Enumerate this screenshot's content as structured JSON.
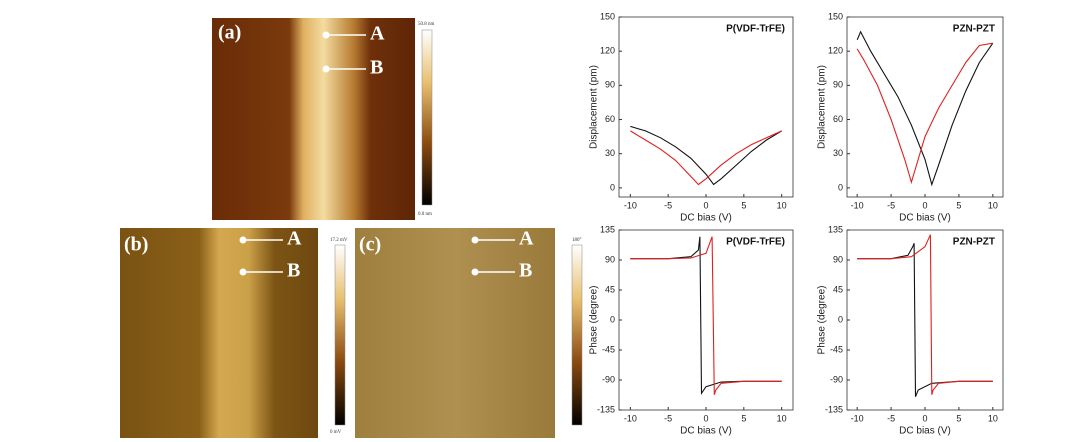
{
  "panels": [
    {
      "label": "(a)",
      "markers": [
        "A",
        "B"
      ],
      "colorbar": [
        "50.8 nm",
        "0.0 nm"
      ]
    },
    {
      "label": "(b)",
      "markers": [
        "A",
        "B"
      ],
      "colorbar": [
        "17.2 mV",
        "0 mV"
      ]
    },
    {
      "label": "(c)",
      "markers": [
        "A",
        "B"
      ],
      "colorbar": [
        "180°"
      ]
    }
  ],
  "chart_data": [
    {
      "type": "line",
      "title": "P(VDF-TrFE)",
      "x_label": "DC bias (V)",
      "y_label": "Displacement (pm)",
      "xlim": [
        -11.5,
        11.5
      ],
      "xticks": [
        -10,
        -5,
        0,
        5,
        10
      ],
      "ylim": [
        -8,
        150
      ],
      "yticks": [
        0,
        30,
        60,
        90,
        120,
        150
      ],
      "series": [
        {
          "color": "#111111",
          "x": [
            -10,
            -8,
            -6,
            -4,
            -2,
            0,
            1,
            2,
            4,
            6,
            8,
            10
          ],
          "values": [
            54,
            50,
            44,
            36,
            26,
            12,
            3,
            8,
            20,
            32,
            42,
            50
          ]
        },
        {
          "color": "#e02020",
          "x": [
            10,
            8,
            6,
            4,
            2,
            0,
            -1,
            -2,
            -4,
            -6,
            -8,
            -10
          ],
          "values": [
            50,
            44,
            38,
            30,
            20,
            8,
            3,
            10,
            24,
            34,
            42,
            50
          ]
        }
      ]
    },
    {
      "type": "line",
      "title": "PZN-PZT",
      "x_label": "DC bias (V)",
      "y_label": "Displacement (pm)",
      "xlim": [
        -11.5,
        11.5
      ],
      "xticks": [
        -10,
        -5,
        0,
        5,
        10
      ],
      "ylim": [
        -8,
        150
      ],
      "yticks": [
        0,
        30,
        60,
        90,
        120,
        150
      ],
      "series": [
        {
          "color": "#111111",
          "x": [
            -10,
            -9.5,
            -8,
            -6,
            -4,
            -2,
            0,
            1,
            2,
            4,
            6,
            8,
            10
          ],
          "values": [
            130,
            137,
            120,
            100,
            80,
            55,
            25,
            3,
            20,
            55,
            85,
            110,
            127
          ]
        },
        {
          "color": "#e02020",
          "x": [
            10,
            8,
            6,
            4,
            2,
            0,
            -1,
            -2,
            -3,
            -5,
            -7,
            -9,
            -10
          ],
          "values": [
            127,
            125,
            110,
            90,
            70,
            45,
            25,
            5,
            25,
            60,
            90,
            112,
            122
          ]
        }
      ]
    },
    {
      "type": "line",
      "title": "P(VDF-TrFE)",
      "x_label": "DC bias (V)",
      "y_label": "Phase (degree)",
      "xlim": [
        -11.5,
        11.5
      ],
      "xticks": [
        -10,
        -5,
        0,
        5,
        10
      ],
      "ylim": [
        -135,
        135
      ],
      "yticks": [
        -135,
        -90,
        -45,
        0,
        45,
        90,
        135
      ],
      "series": [
        {
          "color": "#111111",
          "x": [
            -10,
            -5,
            -2,
            -1,
            -0.8,
            -0.6,
            0,
            2,
            5,
            10
          ],
          "values": [
            92,
            92,
            95,
            105,
            125,
            -110,
            -100,
            -93,
            -92,
            -92
          ]
        },
        {
          "color": "#e02020",
          "x": [
            10,
            5,
            2,
            1.3,
            1.1,
            0.8,
            0,
            -2,
            -5,
            -10
          ],
          "values": [
            -92,
            -92,
            -95,
            -105,
            -112,
            125,
            100,
            93,
            92,
            92
          ]
        }
      ]
    },
    {
      "type": "line",
      "title": "PZN-PZT",
      "x_label": "DC bias (V)",
      "y_label": "Phase (degree)",
      "xlim": [
        -11.5,
        11.5
      ],
      "xticks": [
        -10,
        -5,
        0,
        5,
        10
      ],
      "ylim": [
        -135,
        135
      ],
      "yticks": [
        -135,
        -90,
        -45,
        0,
        45,
        90,
        135
      ],
      "series": [
        {
          "color": "#111111",
          "x": [
            -10,
            -5,
            -2.5,
            -1.8,
            -1.6,
            -1.4,
            -1,
            1,
            5,
            10
          ],
          "values": [
            92,
            92,
            97,
            110,
            115,
            -115,
            -105,
            -95,
            -92,
            -92
          ]
        },
        {
          "color": "#e02020",
          "x": [
            10,
            5,
            2,
            1.2,
            1,
            0.8,
            0,
            -2,
            -5,
            -10
          ],
          "values": [
            -92,
            -92,
            -95,
            -105,
            -112,
            128,
            110,
            95,
            92,
            92
          ]
        }
      ]
    }
  ]
}
